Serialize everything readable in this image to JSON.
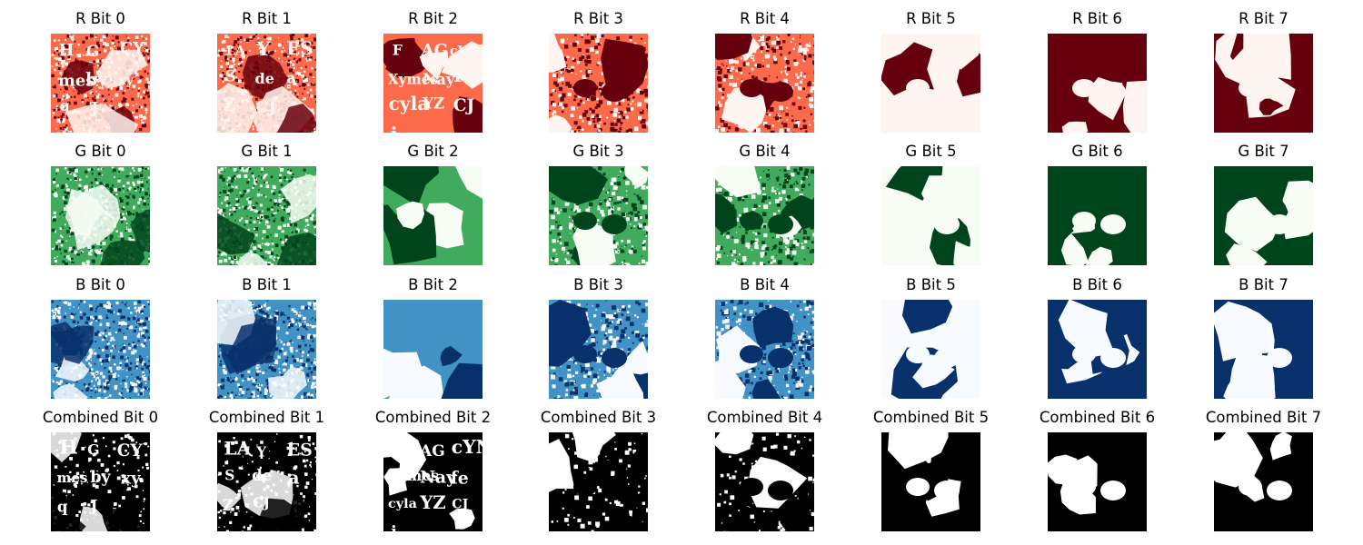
{
  "figure": {
    "rows": [
      {
        "channel": "R",
        "cmap": "Reds",
        "colors": {
          "light": "#fff5f0",
          "mid": "#fb6a4a",
          "dark": "#67000d"
        },
        "titles": [
          "R Bit 0",
          "R Bit 1",
          "R Bit 2",
          "R Bit 3",
          "R Bit 4",
          "R Bit 5",
          "R Bit 6",
          "R Bit 7"
        ]
      },
      {
        "channel": "G",
        "cmap": "Greens",
        "colors": {
          "light": "#f7fcf5",
          "mid": "#41ab5d",
          "dark": "#00441b"
        },
        "titles": [
          "G Bit 0",
          "G Bit 1",
          "G Bit 2",
          "G Bit 3",
          "G Bit 4",
          "G Bit 5",
          "G Bit 6",
          "G Bit 7"
        ]
      },
      {
        "channel": "B",
        "cmap": "Blues",
        "colors": {
          "light": "#f7fbff",
          "mid": "#4292c6",
          "dark": "#08306b"
        },
        "titles": [
          "B Bit 0",
          "B Bit 1",
          "B Bit 2",
          "B Bit 3",
          "B Bit 4",
          "B Bit 5",
          "B Bit 6",
          "B Bit 7"
        ]
      },
      {
        "channel": "Combined",
        "cmap": "gray",
        "colors": {
          "light": "#ffffff",
          "mid": "#808080",
          "dark": "#000000"
        },
        "titles": [
          "Combined Bit 0",
          "Combined Bit 1",
          "Combined Bit 2",
          "Combined Bit 3",
          "Combined Bit 4",
          "Combined Bit 5",
          "Combined Bit 6",
          "Combined Bit 7"
        ]
      }
    ],
    "overlay_glyphs": {
      "0": [
        "H",
        "G",
        "CY",
        "mes",
        "by",
        "xy",
        "q",
        "J"
      ],
      "1": [
        "LA",
        "Y",
        "ES",
        "S",
        "de",
        "a",
        "Z",
        "CJ"
      ],
      "2": [
        "F",
        "AG",
        "cYN",
        "Xymes",
        "Nay",
        "fe",
        "cyla",
        "YZ",
        "CJ",
        "j"
      ]
    }
  }
}
